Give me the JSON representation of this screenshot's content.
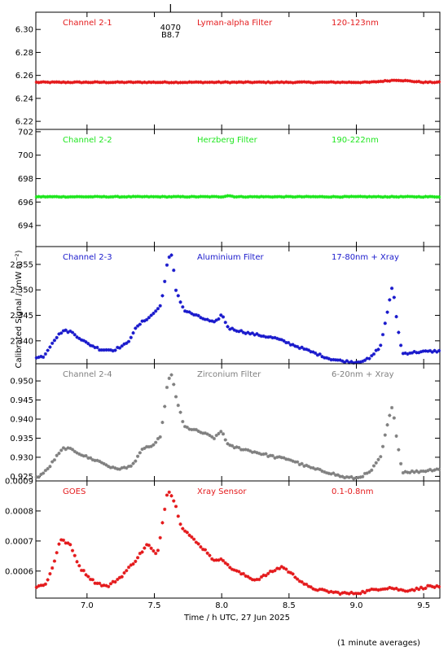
{
  "figure": {
    "ylabel": "Calibrated Signal / (mW m⁻²)",
    "xlabel": "Time / h UTC, 27 Jun 2025",
    "footnote": "(1 minute averages)",
    "marker": {
      "top": "4070",
      "bottom": "B8.7",
      "x": 7.62
    }
  },
  "chart_data": [
    {
      "type": "scatter",
      "name": "Channel 2-1",
      "filter": "Lyman-alpha Filter",
      "band": "120-123nm",
      "color": "#e41a1c",
      "x_range": [
        6.62,
        9.62
      ],
      "ylim": [
        6.213,
        6.315
      ],
      "yticks": [
        6.22,
        6.24,
        6.26,
        6.28,
        6.3
      ],
      "yticklabels": [
        "6.22",
        "6.24",
        "6.26",
        "6.28",
        "6.30"
      ],
      "keyframes": [
        [
          6.62,
          6.254
        ],
        [
          7.0,
          6.254
        ],
        [
          7.5,
          6.254
        ],
        [
          8.0,
          6.254
        ],
        [
          8.5,
          6.254
        ],
        [
          9.1,
          6.254
        ],
        [
          9.2,
          6.255
        ],
        [
          9.3,
          6.256
        ],
        [
          9.4,
          6.255
        ],
        [
          9.5,
          6.254
        ],
        [
          9.62,
          6.254
        ]
      ],
      "noise": 0.0004
    },
    {
      "type": "scatter",
      "name": "Channel 2-2",
      "filter": "Herzberg Filter",
      "band": "190-222nm",
      "color": "#1ee61e",
      "x_range": [
        6.62,
        9.62
      ],
      "ylim": [
        692.2,
        702.2
      ],
      "yticks": [
        694,
        696,
        698,
        700,
        702
      ],
      "yticklabels": [
        "694",
        "696",
        "698",
        "700",
        "702"
      ],
      "keyframes": [
        [
          6.62,
          696.45
        ],
        [
          8.0,
          696.45
        ],
        [
          8.05,
          696.55
        ],
        [
          8.1,
          696.45
        ],
        [
          9.62,
          696.45
        ]
      ],
      "noise": 0.03
    },
    {
      "type": "scatter",
      "name": "Channel 2-3",
      "filter": "Aluminium Filter",
      "band": "17-80nm + Xray",
      "color": "#1a1acc",
      "x_range": [
        6.62,
        9.62
      ],
      "ylim": [
        2.3355,
        2.3585
      ],
      "yticks": [
        2.34,
        2.345,
        2.35,
        2.355
      ],
      "yticklabels": [
        "2.340",
        "2.345",
        "2.350",
        "2.355"
      ],
      "keyframes": [
        [
          6.62,
          2.3366
        ],
        [
          6.68,
          2.337
        ],
        [
          6.75,
          2.34
        ],
        [
          6.82,
          2.342
        ],
        [
          6.88,
          2.3418
        ],
        [
          7.0,
          2.3395
        ],
        [
          7.1,
          2.3383
        ],
        [
          7.2,
          2.3382
        ],
        [
          7.3,
          2.3395
        ],
        [
          7.35,
          2.342
        ],
        [
          7.4,
          2.3435
        ],
        [
          7.48,
          2.345
        ],
        [
          7.55,
          2.347
        ],
        [
          7.6,
          2.356
        ],
        [
          7.63,
          2.3568
        ],
        [
          7.66,
          2.35
        ],
        [
          7.72,
          2.346
        ],
        [
          7.85,
          2.3445
        ],
        [
          7.95,
          2.3435
        ],
        [
          8.0,
          2.3452
        ],
        [
          8.05,
          2.3425
        ],
        [
          8.2,
          2.3415
        ],
        [
          8.4,
          2.3405
        ],
        [
          8.5,
          2.3395
        ],
        [
          8.6,
          2.3385
        ],
        [
          8.7,
          2.3375
        ],
        [
          8.8,
          2.3365
        ],
        [
          8.9,
          2.336
        ],
        [
          9.0,
          2.3358
        ],
        [
          9.1,
          2.3365
        ],
        [
          9.18,
          2.339
        ],
        [
          9.24,
          2.347
        ],
        [
          9.27,
          2.351
        ],
        [
          9.3,
          2.344
        ],
        [
          9.34,
          2.3375
        ],
        [
          9.45,
          2.3378
        ],
        [
          9.62,
          2.338
        ]
      ],
      "noise": 0.0002
    },
    {
      "type": "scatter",
      "name": "Channel 2-4",
      "filter": "Zirconium Filter",
      "band": "6-20nm + Xray",
      "color": "#808080",
      "x_range": [
        6.62,
        9.62
      ],
      "ylim": [
        0.9238,
        0.9545
      ],
      "yticks": [
        0.925,
        0.93,
        0.935,
        0.94,
        0.945,
        0.95
      ],
      "yticklabels": [
        "0.925",
        "0.930",
        "0.935",
        "0.940",
        "0.945",
        "0.950"
      ],
      "keyframes": [
        [
          6.62,
          0.9245
        ],
        [
          6.7,
          0.9265
        ],
        [
          6.77,
          0.93
        ],
        [
          6.83,
          0.9325
        ],
        [
          6.9,
          0.9318
        ],
        [
          7.0,
          0.93
        ],
        [
          7.1,
          0.9288
        ],
        [
          7.2,
          0.927
        ],
        [
          7.3,
          0.9272
        ],
        [
          7.36,
          0.929
        ],
        [
          7.42,
          0.9325
        ],
        [
          7.5,
          0.933
        ],
        [
          7.55,
          0.936
        ],
        [
          7.6,
          0.95
        ],
        [
          7.63,
          0.9515
        ],
        [
          7.66,
          0.946
        ],
        [
          7.72,
          0.938
        ],
        [
          7.85,
          0.9365
        ],
        [
          7.95,
          0.935
        ],
        [
          8.0,
          0.937
        ],
        [
          8.05,
          0.933
        ],
        [
          8.2,
          0.9318
        ],
        [
          8.4,
          0.93
        ],
        [
          8.5,
          0.9295
        ],
        [
          8.6,
          0.928
        ],
        [
          8.7,
          0.9268
        ],
        [
          8.8,
          0.926
        ],
        [
          8.9,
          0.9248
        ],
        [
          9.0,
          0.9245
        ],
        [
          9.1,
          0.926
        ],
        [
          9.18,
          0.93
        ],
        [
          9.24,
          0.94
        ],
        [
          9.27,
          0.9435
        ],
        [
          9.3,
          0.935
        ],
        [
          9.34,
          0.9262
        ],
        [
          9.45,
          0.9262
        ],
        [
          9.62,
          0.927
        ]
      ],
      "noise": 0.0003
    },
    {
      "type": "scatter",
      "name": "GOES",
      "filter": "Xray Sensor",
      "band": "0.1-0.8nm",
      "color": "#e41a1c",
      "x_range": [
        6.62,
        9.62
      ],
      "ylim": [
        0.00051,
        0.0009
      ],
      "yticks": [
        0.0006,
        0.0007,
        0.0008,
        0.0009
      ],
      "yticklabels": [
        "0.0006",
        "0.0007",
        "0.0008",
        "0.0009"
      ],
      "keyframes": [
        [
          6.62,
          0.000545
        ],
        [
          6.7,
          0.00056
        ],
        [
          6.75,
          0.00062
        ],
        [
          6.8,
          0.000705
        ],
        [
          6.87,
          0.00069
        ],
        [
          6.95,
          0.00061
        ],
        [
          7.05,
          0.000565
        ],
        [
          7.15,
          0.000548
        ],
        [
          7.25,
          0.00058
        ],
        [
          7.35,
          0.00063
        ],
        [
          7.45,
          0.00069
        ],
        [
          7.52,
          0.00065
        ],
        [
          7.56,
          0.00076
        ],
        [
          7.6,
          0.000875
        ],
        [
          7.65,
          0.00083
        ],
        [
          7.7,
          0.00075
        ],
        [
          7.8,
          0.0007
        ],
        [
          7.9,
          0.00066
        ],
        [
          7.95,
          0.00063
        ],
        [
          8.0,
          0.000645
        ],
        [
          8.05,
          0.000615
        ],
        [
          8.15,
          0.00059
        ],
        [
          8.25,
          0.00057
        ],
        [
          8.3,
          0.00058
        ],
        [
          8.38,
          0.0006
        ],
        [
          8.45,
          0.000615
        ],
        [
          8.55,
          0.00058
        ],
        [
          8.65,
          0.000545
        ],
        [
          8.75,
          0.000535
        ],
        [
          8.85,
          0.000528
        ],
        [
          8.95,
          0.000525
        ],
        [
          9.05,
          0.00053
        ],
        [
          9.15,
          0.00054
        ],
        [
          9.25,
          0.000545
        ],
        [
          9.35,
          0.000535
        ],
        [
          9.45,
          0.00054
        ],
        [
          9.55,
          0.00055
        ],
        [
          9.62,
          0.000545
        ]
      ],
      "noise": 4e-06
    }
  ],
  "xaxis": {
    "range": [
      6.62,
      9.62
    ],
    "ticks": [
      7.0,
      7.5,
      8.0,
      8.5,
      9.0,
      9.5
    ],
    "ticklabels": [
      "7.0",
      "7.5",
      "8.0",
      "8.5",
      "9.0",
      "9.5"
    ]
  }
}
